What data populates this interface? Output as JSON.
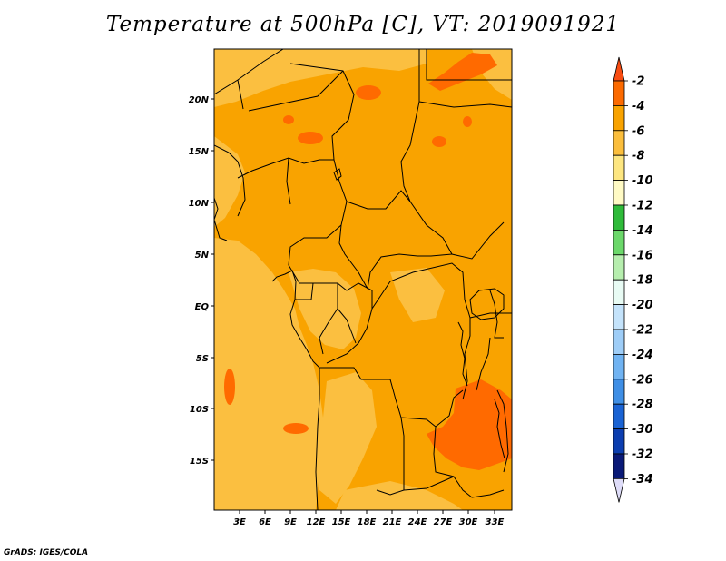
{
  "title": "Temperature at 500hPa [C], VT: 2019091921",
  "credit": "GrADS: IGES/COLA",
  "map": {
    "lat_labels": [
      "20N",
      "15N",
      "10N",
      "5N",
      "EQ",
      "5S",
      "10S",
      "15S"
    ],
    "lon_labels": [
      "3E",
      "6E",
      "9E",
      "12E",
      "15E",
      "18E",
      "21E",
      "24E",
      "27E",
      "30E",
      "33E"
    ],
    "fill_levels": {
      "minus4_to_minus2": "#ff6a00",
      "minus6_to_minus4": "#f9a300",
      "minus8_to_minus6": "#fbbf40"
    }
  },
  "colorbar": {
    "labels": [
      "-2",
      "-4",
      "-6",
      "-8",
      "-10",
      "-12",
      "-14",
      "-16",
      "-18",
      "-20",
      "-22",
      "-24",
      "-26",
      "-28",
      "-30",
      "-32",
      "-34"
    ],
    "colors": [
      "#f84c12",
      "#fc6a00",
      "#f9a300",
      "#fbbe3c",
      "#fde680",
      "#fffac4",
      "#2fbb3a",
      "#6bd86a",
      "#b6eeae",
      "#e8fbf4",
      "#c4e3fb",
      "#9ecdf7",
      "#70b3f2",
      "#3f8fe6",
      "#1a63d4",
      "#0c3eb0",
      "#0a1a78",
      "#dedcf8"
    ]
  }
}
